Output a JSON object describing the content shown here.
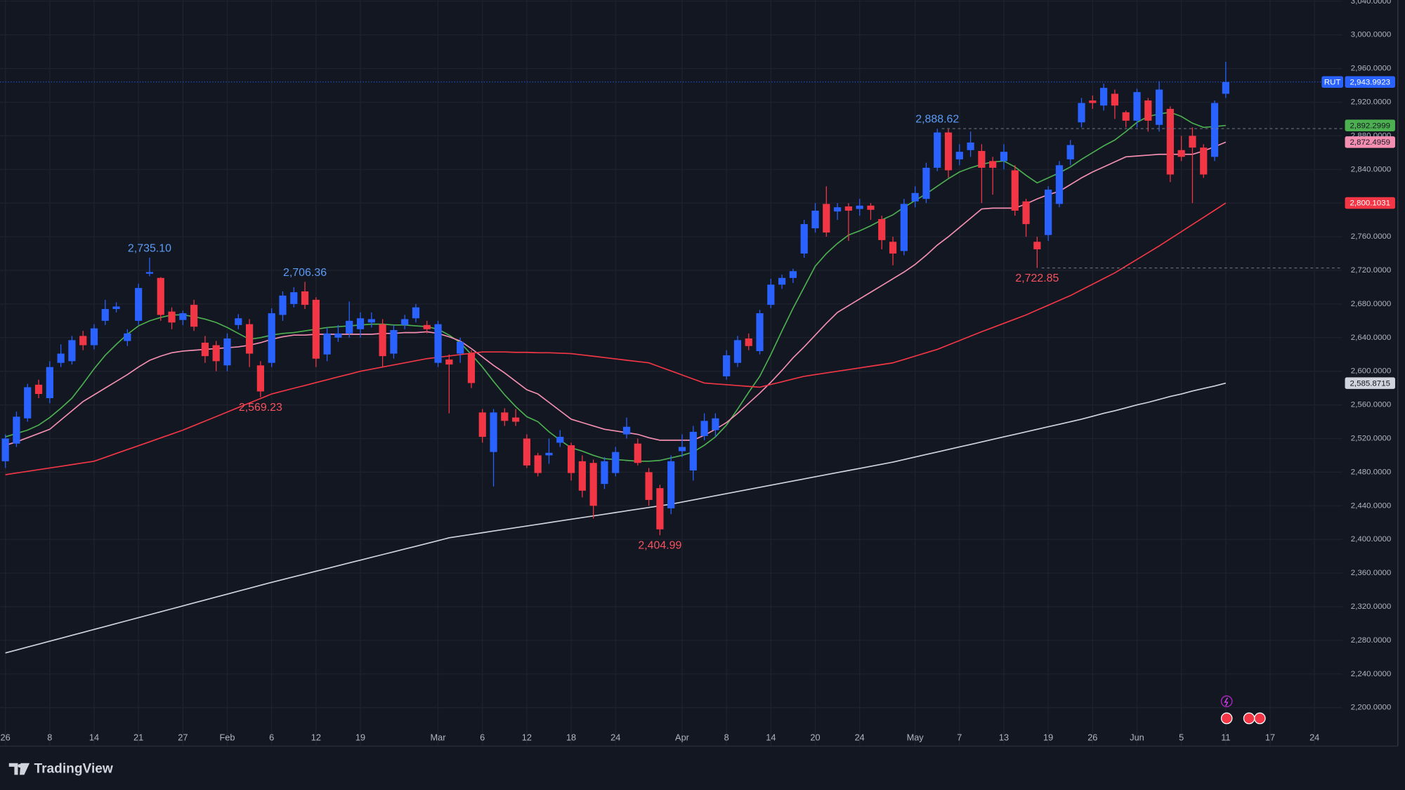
{
  "chart_data": {
    "type": "candlestick",
    "symbol": "RUT",
    "categories": [
      "26",
      null,
      null,
      null,
      "8",
      null,
      null,
      null,
      "14",
      null,
      null,
      null,
      "21",
      null,
      null,
      null,
      "27",
      null,
      null,
      null,
      "Feb",
      null,
      null,
      null,
      "6",
      null,
      null,
      null,
      "12",
      null,
      null,
      null,
      "19",
      null,
      null,
      null,
      null,
      null,
      null,
      "Mar",
      null,
      null,
      null,
      "6",
      null,
      null,
      null,
      "12",
      null,
      null,
      null,
      "18",
      null,
      null,
      null,
      "24",
      null,
      null,
      null,
      null,
      null,
      "Apr",
      null,
      null,
      null,
      "8",
      null,
      null,
      null,
      "14",
      null,
      null,
      null,
      "20",
      null,
      null,
      null,
      "24",
      null,
      null,
      null,
      null,
      "May",
      null,
      null,
      null,
      "7",
      null,
      null,
      null,
      "13",
      null,
      null,
      null,
      "19",
      null,
      null,
      null,
      "26",
      null,
      null,
      null,
      "Jun",
      null,
      null,
      null,
      "5",
      null,
      null,
      null,
      "11",
      null,
      null,
      null,
      "17",
      null,
      null,
      null,
      "24"
    ],
    "open": [
      2493,
      2514,
      2544,
      2584,
      2568,
      2610,
      2612,
      2642,
      2631,
      2660,
      2674,
      2636,
      2660,
      2716,
      2711,
      2671,
      2661,
      2679,
      2634,
      2631,
      2607,
      2655,
      2656,
      2607,
      2610,
      2667,
      2680,
      2695,
      2685,
      2620,
      2640,
      2645,
      2650,
      2658,
      2656,
      2621,
      2655,
      2663,
      2655,
      2610,
      2614,
      2621,
      2621,
      2551,
      2504,
      2551,
      2545,
      2520,
      2500,
      2500,
      2515,
      2512,
      2493,
      2491,
      2466,
      2479,
      2525,
      2514,
      2480,
      2461,
      2437,
      2505,
      2482,
      2523,
      2530,
      2594,
      2610,
      2639,
      2624,
      2679,
      2703,
      2711,
      2740,
      2770,
      2799,
      2790,
      2796,
      2793,
      2797,
      2781,
      2754,
      2743,
      2802,
      2805,
      2842,
      2884,
      2852,
      2863,
      2862,
      2850,
      2850,
      2839,
      2802,
      2754,
      2762,
      2799,
      2852,
      2896,
      2922,
      2916,
      2930,
      2908,
      2898,
      2922,
      2893,
      2912,
      2863,
      2880,
      2866,
      2855,
      2930,
      null,
      null,
      null,
      null,
      null,
      null,
      null,
      null
    ],
    "high": [
      2525,
      2552,
      2585,
      2590,
      2612,
      2632,
      2642,
      2648,
      2656,
      2685,
      2682,
      2650,
      2704,
      2735.1,
      2712,
      2676,
      2672,
      2685,
      2642,
      2636,
      2645,
      2668,
      2662,
      2612,
      2675,
      2695,
      2700,
      2706.36,
      2688,
      2652,
      2655,
      2683,
      2670,
      2670,
      2662,
      2655,
      2667,
      2680,
      2660,
      2660,
      2620,
      2640,
      2625,
      2555,
      2555,
      2556,
      2555,
      2525,
      2503,
      2520,
      2530,
      2515,
      2500,
      2495,
      2498,
      2510,
      2545,
      2520,
      2485,
      2465,
      2500,
      2525,
      2535,
      2550,
      2550,
      2625,
      2642,
      2645,
      2673,
      2710,
      2715,
      2722,
      2780,
      2800,
      2820,
      2800,
      2800,
      2805,
      2800,
      2785,
      2760,
      2805,
      2820,
      2848,
      2888.62,
      2888,
      2870,
      2885,
      2870,
      2855,
      2870,
      2845,
      2805,
      2760,
      2820,
      2850,
      2875,
      2925,
      2928,
      2942,
      2935,
      2910,
      2936,
      2925,
      2945,
      2915,
      2880,
      2890,
      2870,
      2922,
      2968,
      null,
      null,
      null,
      null,
      null,
      null,
      null,
      null
    ],
    "low": [
      2485,
      2510,
      2540,
      2568,
      2562,
      2605,
      2608,
      2625,
      2626,
      2655,
      2670,
      2630,
      2655,
      2713,
      2660,
      2650,
      2655,
      2648,
      2610,
      2600,
      2600,
      2650,
      2605,
      2569.23,
      2605,
      2660,
      2676,
      2674,
      2605,
      2612,
      2635,
      2640,
      2640,
      2652,
      2605,
      2615,
      2650,
      2658,
      2645,
      2605,
      2550,
      2610,
      2580,
      2515,
      2463,
      2535,
      2535,
      2485,
      2475,
      2490,
      2510,
      2470,
      2450,
      2425,
      2460,
      2475,
      2520,
      2488,
      2440,
      2404.99,
      2430,
      2498,
      2470,
      2518,
      2522,
      2590,
      2605,
      2625,
      2620,
      2675,
      2698,
      2705,
      2735,
      2765,
      2760,
      2780,
      2755,
      2785,
      2780,
      2745,
      2726,
      2738,
      2795,
      2800,
      2838,
      2830,
      2845,
      2855,
      2800,
      2810,
      2840,
      2785,
      2760,
      2722.85,
      2755,
      2795,
      2845,
      2890,
      2912,
      2910,
      2900,
      2890,
      2890,
      2885,
      2885,
      2825,
      2850,
      2800,
      2830,
      2850,
      2925,
      null,
      null,
      null,
      null,
      null,
      null,
      null,
      null
    ],
    "close": [
      2520,
      2546,
      2581,
      2573,
      2605,
      2621,
      2637,
      2631,
      2651,
      2674,
      2677,
      2645,
      2699,
      2718,
      2667,
      2658,
      2669,
      2653,
      2618,
      2612,
      2639,
      2663,
      2621,
      2576,
      2669,
      2690,
      2694,
      2679,
      2615,
      2645,
      2645,
      2660,
      2663,
      2662,
      2618,
      2649,
      2662,
      2676,
      2650,
      2656,
      2608,
      2635,
      2586,
      2522,
      2551,
      2541,
      2540,
      2488,
      2479,
      2503,
      2522,
      2479,
      2458,
      2440,
      2493,
      2504,
      2534,
      2491,
      2447,
      2412,
      2493,
      2510,
      2528,
      2541,
      2544,
      2619,
      2637,
      2630,
      2669,
      2703,
      2711,
      2719,
      2775,
      2791,
      2765,
      2795,
      2791,
      2797,
      2792,
      2756,
      2740,
      2799,
      2812,
      2842,
      2884,
      2839,
      2861,
      2872,
      2842,
      2842,
      2861,
      2791,
      2775,
      2745,
      2816,
      2845,
      2869,
      2919,
      2919,
      2937,
      2916,
      2898,
      2932,
      2898,
      2935,
      2834,
      2855,
      2866,
      2834,
      2919,
      2943.9923,
      null,
      null,
      null,
      null,
      null,
      null,
      null,
      null
    ],
    "close_label": "2,943.9923",
    "up_color": "#2962ff",
    "down_color": "#f23645",
    "series": [
      {
        "type": "line",
        "color": "#4caf50",
        "label_text_color": "#131722",
        "value_label": "2,892.2999",
        "values": [
          2522,
          2526,
          2530,
          2536,
          2545,
          2556,
          2568,
          2585,
          2603,
          2619,
          2632,
          2644,
          2654,
          2660,
          2664,
          2667,
          2667,
          2665,
          2662,
          2658,
          2652,
          2645,
          2638,
          2640,
          2643,
          2645,
          2646,
          2648,
          2650,
          2652,
          2653,
          2654,
          2655,
          2656,
          2656,
          2655,
          2655,
          2654,
          2653,
          2650,
          2643,
          2634,
          2620,
          2605,
          2588,
          2572,
          2558,
          2546,
          2540,
          2528,
          2518,
          2509,
          2505,
          2500,
          2496,
          2495,
          2494,
          2493,
          2493,
          2494,
          2497,
          2500,
          2504,
          2512,
          2522,
          2536,
          2555,
          2575,
          2594,
          2620,
          2648,
          2675,
          2700,
          2725,
          2740,
          2752,
          2762,
          2767,
          2773,
          2780,
          2786,
          2795,
          2803,
          2811,
          2820,
          2829,
          2837,
          2842,
          2846,
          2849,
          2850,
          2843,
          2833,
          2824,
          2830,
          2836,
          2843,
          2852,
          2860,
          2868,
          2875,
          2885,
          2896,
          2903,
          2906,
          2908,
          2903,
          2895,
          2890,
          2891,
          2892.2999,
          null,
          null,
          null,
          null,
          null,
          null,
          null,
          null
        ]
      },
      {
        "type": "line",
        "color": "#f48fb1",
        "label_text_color": "#131722",
        "value_label": "2,872.4959",
        "values": [
          2512,
          2516,
          2521,
          2526,
          2531,
          2542,
          2553,
          2564,
          2572,
          2580,
          2588,
          2596,
          2605,
          2613,
          2618,
          2622,
          2624,
          2625,
          2626,
          2627,
          2628,
          2629,
          2631,
          2634,
          2638,
          2641,
          2643,
          2643,
          2644,
          2644,
          2644,
          2644,
          2644,
          2644,
          2645,
          2645,
          2646,
          2646,
          2647,
          2645,
          2641,
          2636,
          2627,
          2617,
          2607,
          2598,
          2588,
          2578,
          2573,
          2563,
          2553,
          2543,
          2539,
          2535,
          2531,
          2529,
          2527,
          2525,
          2521,
          2518,
          2518,
          2518,
          2518,
          2524,
          2531,
          2539,
          2550,
          2562,
          2574,
          2587,
          2601,
          2616,
          2629,
          2643,
          2657,
          2670,
          2678,
          2686,
          2694,
          2702,
          2710,
          2718,
          2727,
          2738,
          2750,
          2760,
          2771,
          2782,
          2793,
          2794,
          2794,
          2794,
          2799,
          2805,
          2810,
          2814,
          2822,
          2830,
          2837,
          2843,
          2849,
          2855,
          2856,
          2857,
          2858,
          2858,
          2858,
          2858,
          2862,
          2867,
          2872.4959,
          null,
          null,
          null,
          null,
          null,
          null,
          null,
          null
        ]
      },
      {
        "type": "line",
        "color": "#f23645",
        "label_text_color": "#ffffff",
        "value_label": "2,800.1031",
        "values": [
          2477,
          2479,
          2481,
          2483,
          2485,
          2487,
          2489,
          2491,
          2493,
          2497.6,
          2502.3,
          2506.9,
          2511.5,
          2516.1,
          2520.8,
          2525.4,
          2530,
          2535.4,
          2540.8,
          2546.1,
          2551.5,
          2556.9,
          2562.3,
          2567.6,
          2573,
          2576.4,
          2579.8,
          2583.1,
          2586.5,
          2589.9,
          2593.3,
          2596.6,
          2600,
          2602.5,
          2605,
          2607.5,
          2610,
          2612.5,
          2615,
          2616.6,
          2618.2,
          2619.8,
          2621.4,
          2623,
          2623,
          2623,
          2622.5,
          2622.5,
          2622,
          2622,
          2621.5,
          2621,
          2619.4,
          2617.9,
          2616.3,
          2614.7,
          2613.1,
          2611.6,
          2610,
          2605.2,
          2600.4,
          2595.6,
          2590.8,
          2586,
          2585,
          2584,
          2583,
          2582,
          2581,
          2584.3,
          2587.5,
          2590.8,
          2594,
          2596,
          2598,
          2600,
          2602,
          2604,
          2606,
          2608,
          2610,
          2614,
          2618,
          2622,
          2626,
          2631.3,
          2636.5,
          2641.8,
          2647,
          2652,
          2657,
          2662,
          2667,
          2672.8,
          2678.5,
          2684.3,
          2690,
          2696.8,
          2703.5,
          2710.3,
          2717,
          2725,
          2733,
          2741,
          2749,
          2757.5,
          2766,
          2774.5,
          2783,
          2791.5,
          2800.1031,
          null,
          null,
          null,
          null,
          null,
          null,
          null,
          null
        ]
      },
      {
        "type": "line",
        "color": "#d1d4dc",
        "label_text_color": "#131722",
        "value_label": "2,585.8715",
        "values": [
          2265,
          2268.5,
          2272,
          2275.5,
          2279,
          2282.5,
          2286,
          2289.5,
          2293,
          2296.5,
          2300,
          2303.5,
          2307,
          2310.5,
          2314,
          2317.5,
          2321,
          2324.5,
          2328,
          2331.5,
          2335,
          2338.5,
          2342,
          2345.5,
          2349,
          2352.3,
          2355.6,
          2358.9,
          2362.2,
          2365.5,
          2368.8,
          2372.1,
          2375.4,
          2378.7,
          2382,
          2385.3,
          2388.6,
          2391.9,
          2395.2,
          2398.5,
          2402,
          2404,
          2406,
          2408,
          2410,
          2412,
          2414,
          2416,
          2418,
          2420,
          2422,
          2424,
          2426,
          2428,
          2430,
          2432,
          2434,
          2436,
          2438,
          2440,
          2442,
          2444.5,
          2447,
          2449.5,
          2452,
          2454.5,
          2457,
          2459.5,
          2462,
          2464.5,
          2467,
          2469.5,
          2472,
          2474.5,
          2477,
          2479.5,
          2482,
          2484.5,
          2487,
          2489.5,
          2492,
          2495,
          2498,
          2501,
          2504,
          2507,
          2510,
          2513,
          2516,
          2519,
          2522,
          2525,
          2528,
          2531,
          2534,
          2537,
          2540,
          2543,
          2546.5,
          2550,
          2553,
          2556.5,
          2560,
          2563,
          2566.5,
          2570,
          2573,
          2576.5,
          2579.5,
          2582.5,
          2585.8715,
          null,
          null,
          null,
          null,
          null,
          null,
          null,
          null
        ]
      }
    ],
    "annotations": [
      {
        "label": "2,735.10",
        "value": 2735.1,
        "color": "#5b9cf6"
      },
      {
        "label": "2,706.36",
        "value": 2706.36,
        "color": "#5b9cf6"
      },
      {
        "label": "2,569.23",
        "value": 2569.23,
        "color": "#f7525f"
      },
      {
        "label": "2,404.99",
        "value": 2404.99,
        "color": "#f7525f"
      },
      {
        "label": "2,888.62",
        "value": 2888.62,
        "color": "#5b9cf6",
        "extended": true
      },
      {
        "label": "2,722.85",
        "value": 2722.85,
        "color": "#f7525f",
        "extended": true
      }
    ],
    "ylim": [
      2155.3,
      3041.5
    ],
    "yticks": [
      {
        "value": 2200,
        "label": "2,200.0000"
      },
      {
        "value": 2240,
        "label": "2,240.0000"
      },
      {
        "value": 2280,
        "label": "2,280.0000"
      },
      {
        "value": 2320,
        "label": "2,320.0000"
      },
      {
        "value": 2360,
        "label": "2,360.0000"
      },
      {
        "value": 2400,
        "label": "2,400.0000"
      },
      {
        "value": 2440,
        "label": "2,440.0000"
      },
      {
        "value": 2480,
        "label": "2,480.0000"
      },
      {
        "value": 2520,
        "label": "2,520.0000"
      },
      {
        "value": 2560,
        "label": "2,560.0000"
      },
      {
        "value": 2600,
        "label": "2,600.0000"
      },
      {
        "value": 2640,
        "label": "2,640.0000"
      },
      {
        "value": 2680,
        "label": "2,680.0000"
      },
      {
        "value": 2720,
        "label": "2,720.0000"
      },
      {
        "value": 2760,
        "label": "2,760.0000"
      },
      {
        "value": 2800,
        "label": "2,800.0000"
      },
      {
        "value": 2840,
        "label": "2,840.0000"
      },
      {
        "value": 2880,
        "label": "2,880.0000"
      },
      {
        "value": 2920,
        "label": "2,920.0000"
      },
      {
        "value": 2960,
        "label": "2,960.0000"
      },
      {
        "value": 3000,
        "label": "3,000.0000"
      },
      {
        "value": 3040,
        "label": "3,040.0000"
      }
    ],
    "grid": true
  },
  "brand": "TradingView"
}
